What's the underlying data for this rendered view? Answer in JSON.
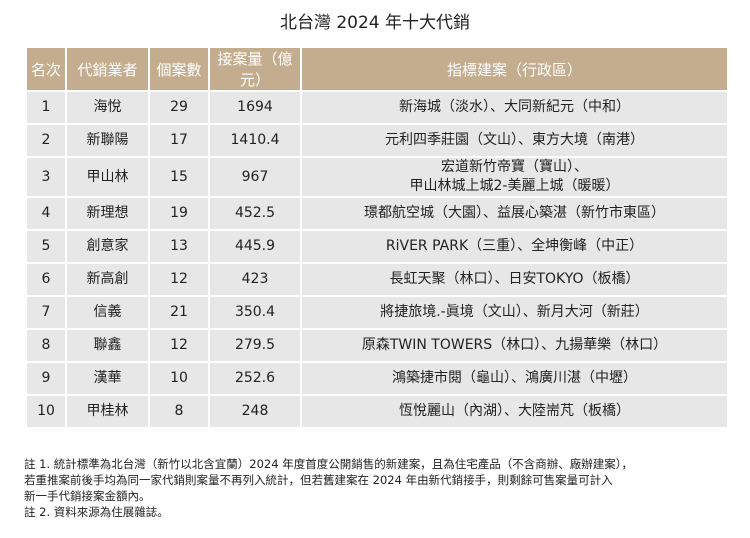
{
  "header": {
    "title": "北台灣 2024 年十大代銷"
  },
  "table": {
    "headers": [
      "名次",
      "代銷業者",
      "個案數",
      "接案量（億元）",
      "指標建案（行政區）"
    ],
    "rows": [
      [
        1,
        "海悅",
        29,
        1694,
        [
          "新海城（淡水）、大同新紀元（中和）"
        ]
      ],
      [
        2,
        "新聯陽",
        17,
        1410.4,
        [
          "元利四季莊園（文山）、東方大境（南港）"
        ]
      ],
      [
        3,
        "甲山林",
        15,
        967,
        [
          "宏道新竹帝寶（寶山）、",
          "甲山林城上城2-美麗上城（暖暖）"
        ]
      ],
      [
        4,
        "新理想",
        19,
        452.5,
        [
          "璟都航空城（大園）、益展心築湛（新竹市東區）"
        ]
      ],
      [
        5,
        "創意家",
        13,
        445.9,
        [
          "RiVER PARK（三重）、全坤衡峰（中正）"
        ]
      ],
      [
        6,
        "新高創",
        12,
        423,
        [
          "長虹天聚（林口）、日安TOKYO（板橋）"
        ]
      ],
      [
        7,
        "信義",
        21,
        350.4,
        [
          "將捷旅境.-眞境（文山）、新月大河（新莊）"
        ]
      ],
      [
        8,
        "聯鑫",
        12,
        279.5,
        [
          "原森TWIN TOWERS（林口）、九揚華樂（林口）"
        ]
      ],
      [
        9,
        "漢華",
        10,
        252.6,
        [
          "鴻築捷市閱（龜山）、鴻廣川湛（中壢）"
        ]
      ],
      [
        10,
        "甲桂林",
        8,
        248,
        [
          "恆悅麗山（內湖）、大陸耑芃（板橋）"
        ]
      ]
    ]
  },
  "notes": [
    [
      "註 1. 統計標準為北台灣（新竹以北含宜蘭）2024 年度首度公開銷售的新建案，且為住宅產品（不含商辦、廠辦建案），",
      "若重推案前後手均為同一家代銷則案量不再列入統計，但若舊建案在 2024 年由新代銷接手，則剩餘可售案量可計入",
      "新一手代銷接案金額內。"
    ],
    [
      "註 2. 資料來源為住展雜誌。"
    ]
  ]
}
